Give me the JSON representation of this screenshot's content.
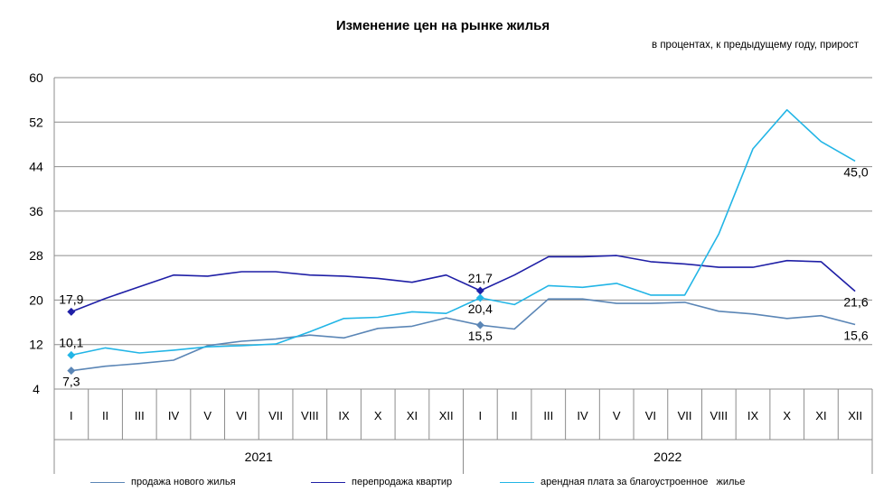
{
  "chart_data": {
    "type": "line",
    "title": "Изменение цен на рынке жилья",
    "subtitle": "в процентах, к предыдущему году, прирост",
    "ylim": [
      4,
      60
    ],
    "yticks": [
      "4",
      "12",
      "20",
      "28",
      "36",
      "44",
      "52",
      "60"
    ],
    "categories": [
      "I",
      "II",
      "III",
      "IV",
      "V",
      "VI",
      "VII",
      "VIII",
      "IX",
      "X",
      "XI",
      "XII",
      "I",
      "II",
      "III",
      "IV",
      "V",
      "VI",
      "VII",
      "VIII",
      "IX",
      "X",
      "XI",
      "XII"
    ],
    "years": [
      {
        "label": "2021",
        "start": 0,
        "end": 11
      },
      {
        "label": "2022",
        "start": 12,
        "end": 23
      }
    ],
    "grid": true,
    "legend_position": "bottom",
    "series": [
      {
        "name": "продажа нового жилья",
        "color": "#5b86b6",
        "values": [
          7.3,
          8.1,
          8.6,
          9.2,
          11.8,
          12.6,
          13.0,
          13.7,
          13.2,
          14.9,
          15.3,
          16.8,
          15.5,
          14.8,
          20.2,
          20.2,
          19.4,
          19.4,
          19.6,
          18.0,
          17.5,
          16.7,
          17.2,
          15.6
        ]
      },
      {
        "name": "перепродажа квартир",
        "color": "#1f1fa6",
        "values": [
          17.9,
          20.3,
          22.4,
          24.5,
          24.3,
          25.1,
          25.1,
          24.5,
          24.3,
          23.9,
          23.2,
          24.5,
          21.7,
          24.5,
          27.8,
          27.8,
          28.0,
          26.9,
          26.5,
          25.9,
          25.9,
          27.1,
          26.9,
          21.6
        ]
      },
      {
        "name": "арендная плата за благоустроенное   жилье",
        "color": "#22b5e6",
        "values": [
          10.1,
          11.4,
          10.5,
          11.0,
          11.6,
          11.8,
          12.1,
          14.3,
          16.7,
          16.9,
          17.9,
          17.6,
          20.4,
          19.2,
          22.6,
          22.3,
          23.0,
          20.9,
          20.9,
          31.9,
          47.2,
          54.2,
          48.5,
          45.0
        ]
      }
    ],
    "annotations": [
      {
        "series": 1,
        "index": 0,
        "text": "17,9",
        "pos": "above"
      },
      {
        "series": 2,
        "index": 0,
        "text": "10,1",
        "pos": "above"
      },
      {
        "series": 0,
        "index": 0,
        "text": "7,3",
        "pos": "below"
      },
      {
        "series": 1,
        "index": 12,
        "text": "21,7",
        "pos": "above"
      },
      {
        "series": 2,
        "index": 12,
        "text": "20,4",
        "pos": "below"
      },
      {
        "series": 0,
        "index": 12,
        "text": "15,5",
        "pos": "below"
      },
      {
        "series": 2,
        "index": 23,
        "text": "45,0",
        "pos": "below"
      },
      {
        "series": 1,
        "index": 23,
        "text": "21,6",
        "pos": "below"
      },
      {
        "series": 0,
        "index": 23,
        "text": "15,6",
        "pos": "below"
      }
    ],
    "markers": [
      {
        "series": 1,
        "index": 0
      },
      {
        "series": 2,
        "index": 0
      },
      {
        "series": 0,
        "index": 0
      },
      {
        "series": 1,
        "index": 12
      },
      {
        "series": 2,
        "index": 12
      },
      {
        "series": 0,
        "index": 12
      }
    ]
  }
}
